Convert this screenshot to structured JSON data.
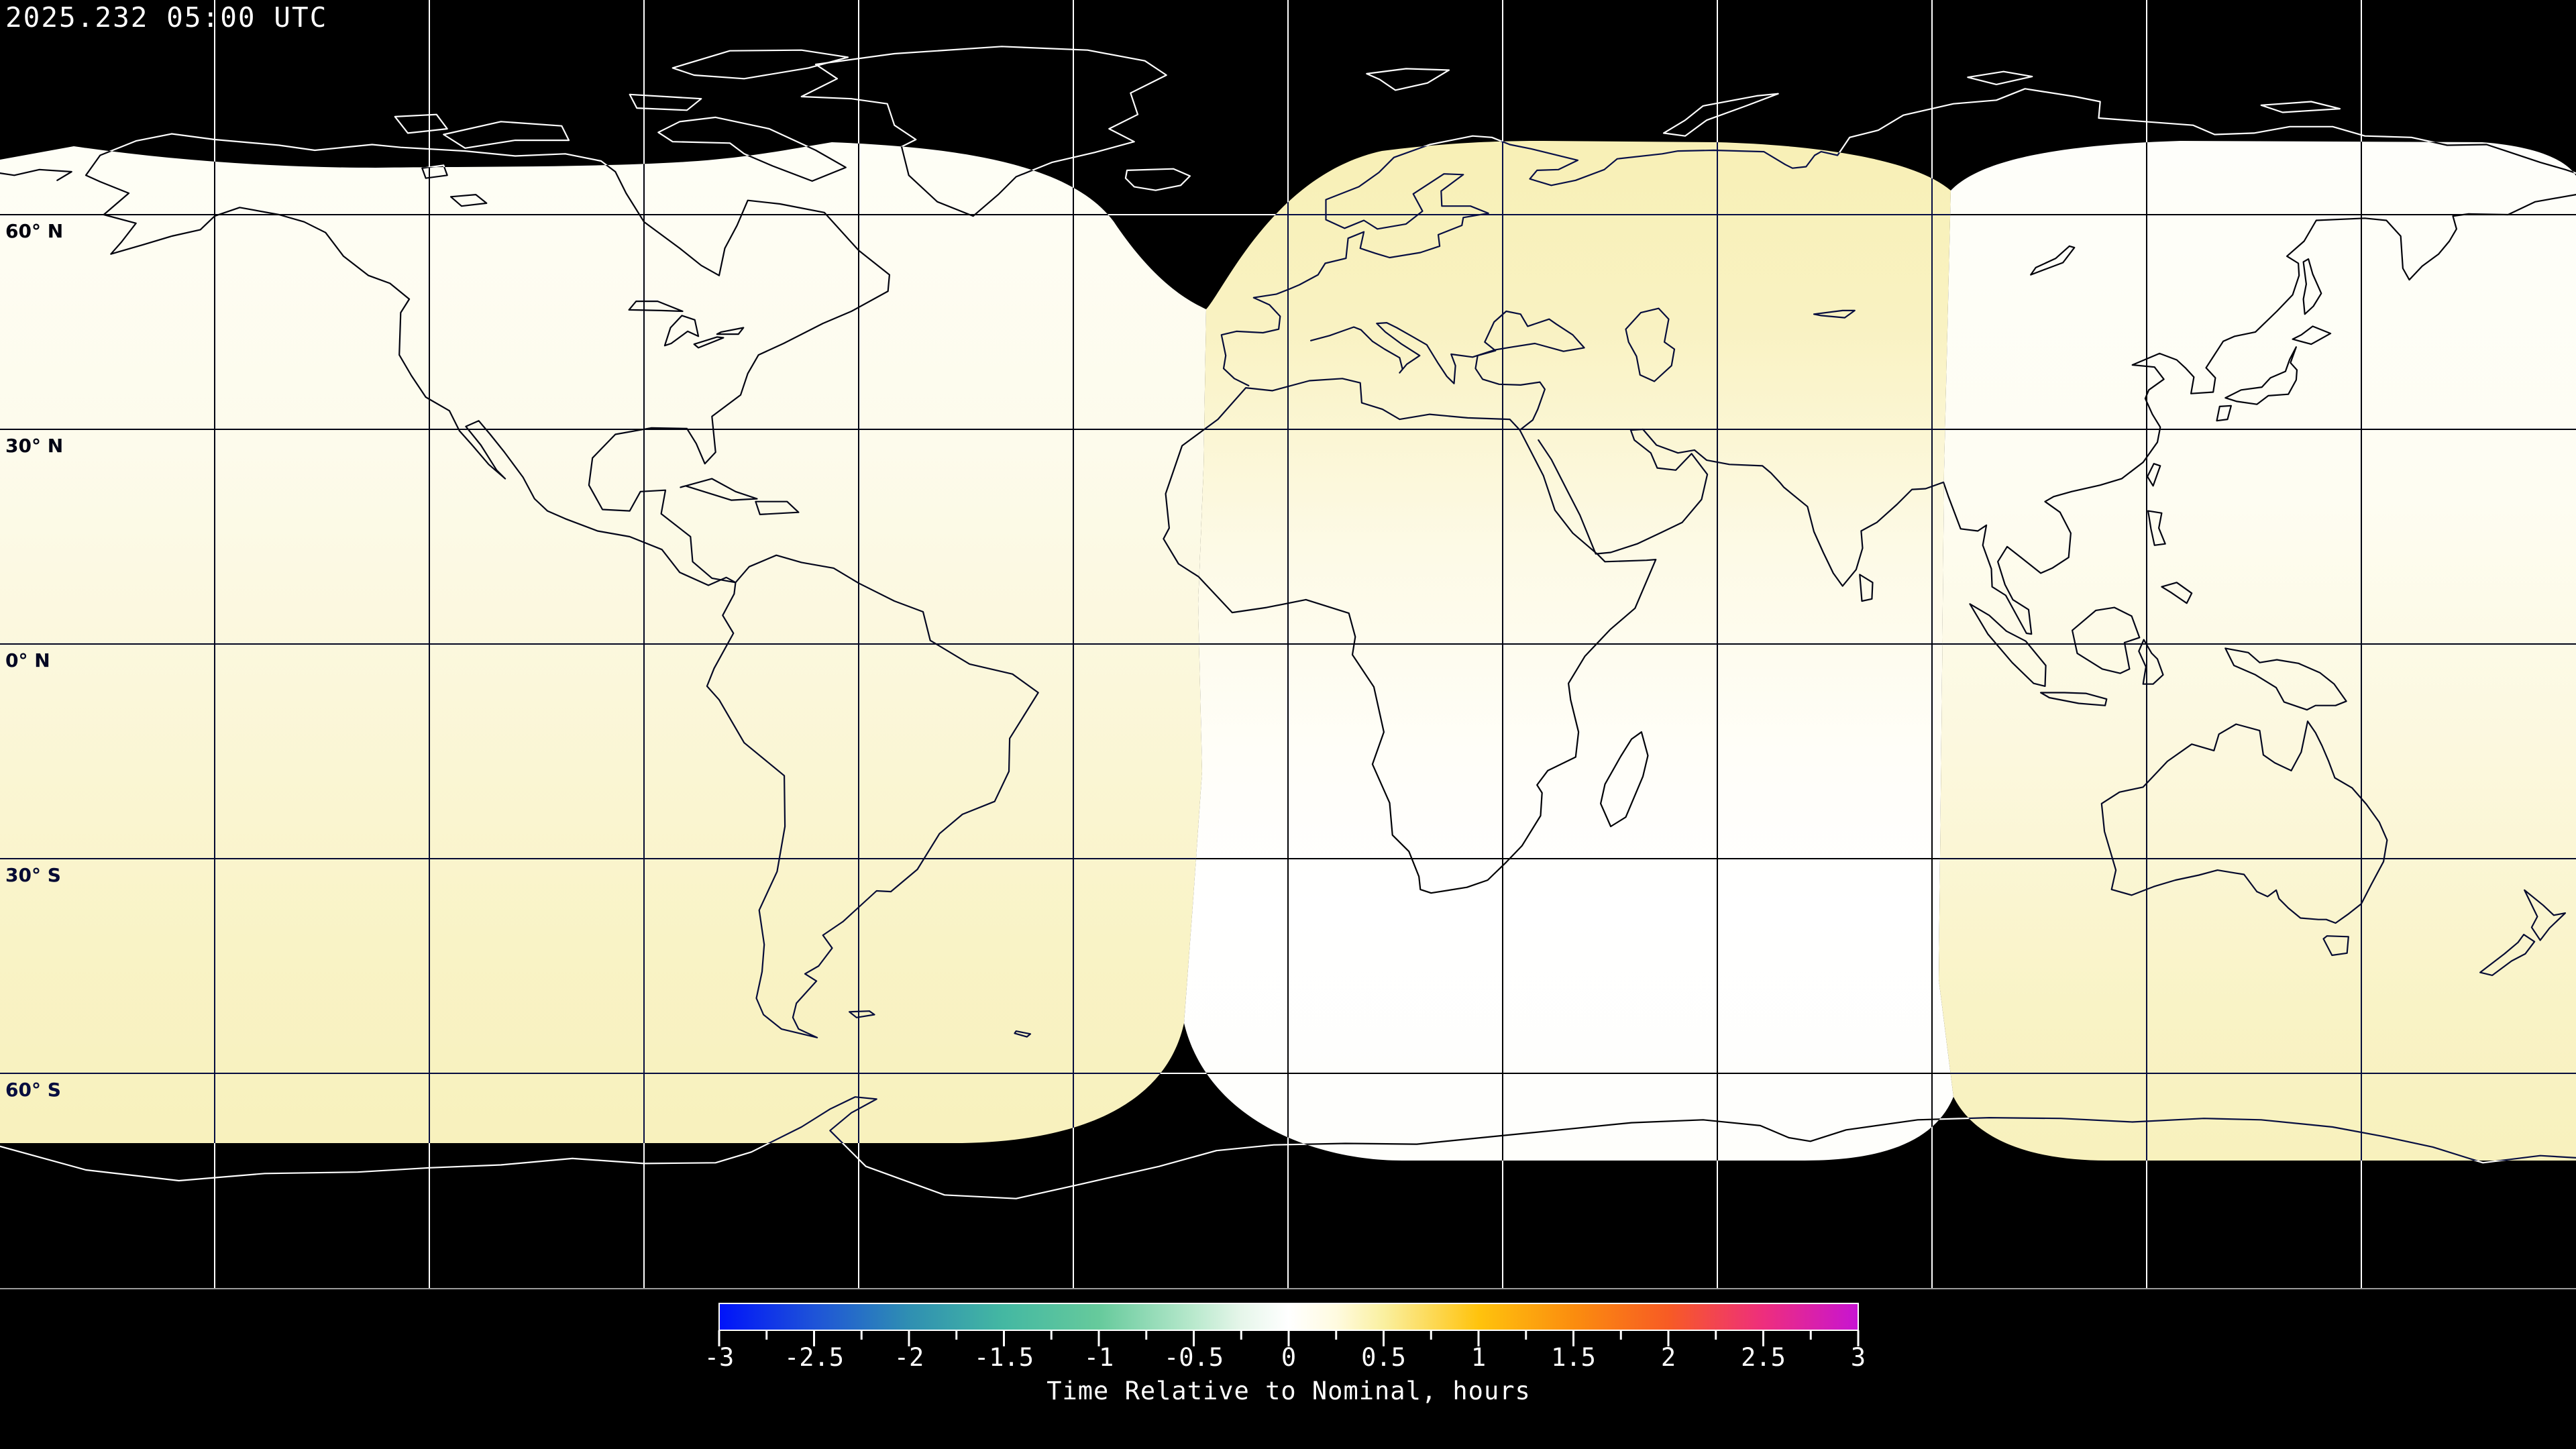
{
  "header": {
    "timestamp": "2025.232 05:00 UTC"
  },
  "map": {
    "projection": "equirectangular",
    "latitude_labels": [
      {
        "text": "60° N",
        "lat": 60
      },
      {
        "text": "30° N",
        "lat": 30
      },
      {
        "text": "0° N",
        "lat": 0
      },
      {
        "text": "30° S",
        "lat": -30
      },
      {
        "text": "60° S",
        "lat": -60
      }
    ],
    "grid_lon_step_deg": 30,
    "grid_lat_step_deg": 30,
    "colors": {
      "background": "#000000",
      "coastline_on_dark": "#ffffff",
      "coastline_on_light": "#000000",
      "swath_white": "#fefef8",
      "swath_pale_yellow": "#f8f1bd"
    }
  },
  "colorbar": {
    "title": "Time Relative to Nominal, hours",
    "min": -3,
    "max": 3,
    "major_tick_step": 0.5,
    "minor_tick_step": 0.25,
    "tick_labels": [
      "-3",
      "-2.5",
      "-2",
      "-1.5",
      "-1",
      "-0.5",
      "0",
      "0.5",
      "1",
      "1.5",
      "2",
      "2.5",
      "3"
    ],
    "gradient_stops": [
      {
        "value": -3,
        "color": "#0013fa"
      },
      {
        "value": -2.5,
        "color": "#1e53d8"
      },
      {
        "value": -2,
        "color": "#2f8fb2"
      },
      {
        "value": -1.5,
        "color": "#44b8a2"
      },
      {
        "value": -1,
        "color": "#66ca9c"
      },
      {
        "value": -0.5,
        "color": "#b9e9cd"
      },
      {
        "value": -0.25,
        "color": "#e6f6ea"
      },
      {
        "value": 0,
        "color": "#ffffff"
      },
      {
        "value": 0.25,
        "color": "#fffbe0"
      },
      {
        "value": 0.5,
        "color": "#faf0a0"
      },
      {
        "value": 1,
        "color": "#ffc30d"
      },
      {
        "value": 1.5,
        "color": "#fb8d0e"
      },
      {
        "value": 2,
        "color": "#f75b24"
      },
      {
        "value": 2.5,
        "color": "#ee2e7d"
      },
      {
        "value": 3,
        "color": "#c714d2"
      }
    ]
  }
}
